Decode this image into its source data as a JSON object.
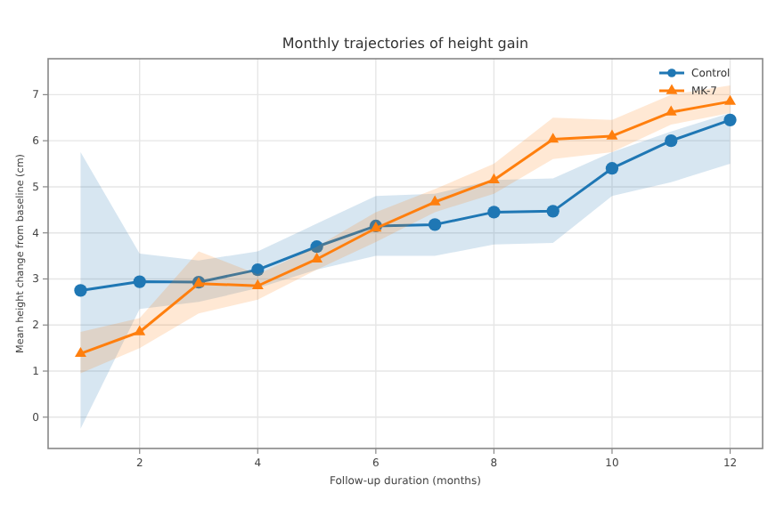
{
  "chart_data": {
    "type": "line",
    "title": "Monthly trajectories of height gain",
    "xlabel": "Follow-up duration (months)",
    "ylabel": "Mean height change from baseline (cm)",
    "x": [
      1,
      2,
      3,
      4,
      5,
      6,
      7,
      8,
      9,
      10,
      11,
      12
    ],
    "xlim": [
      0.45,
      12.55
    ],
    "xticks": [
      2,
      4,
      6,
      8,
      10,
      12
    ],
    "ylim": [
      -0.68,
      7.78
    ],
    "yticks": [
      0,
      1,
      2,
      3,
      4,
      5,
      6,
      7
    ],
    "grid": true,
    "legend": "top right",
    "series": [
      {
        "name": "Control",
        "color": "#1f77b4",
        "marker": "circle",
        "values": [
          2.75,
          2.94,
          2.93,
          3.2,
          3.7,
          4.15,
          4.18,
          4.45,
          4.47,
          5.4,
          6.0,
          6.45
        ],
        "lower": [
          -0.25,
          2.35,
          2.5,
          2.8,
          3.2,
          3.5,
          3.5,
          3.75,
          3.78,
          4.8,
          5.1,
          5.5
        ],
        "upper": [
          5.75,
          3.55,
          3.4,
          3.6,
          4.2,
          4.8,
          4.85,
          5.15,
          5.18,
          5.75,
          6.2,
          6.6
        ]
      },
      {
        "name": "MK-7",
        "color": "#ff7f0e",
        "marker": "triangle",
        "values": [
          1.38,
          1.85,
          2.9,
          2.85,
          3.43,
          4.1,
          4.67,
          5.15,
          6.03,
          6.1,
          6.62,
          6.85
        ],
        "lower": [
          0.95,
          1.5,
          2.25,
          2.55,
          3.2,
          3.8,
          4.45,
          4.85,
          5.6,
          5.75,
          6.35,
          6.6
        ],
        "upper": [
          1.85,
          2.15,
          3.6,
          3.1,
          3.7,
          4.45,
          4.95,
          5.5,
          6.5,
          6.45,
          7.0,
          7.2
        ]
      }
    ]
  }
}
